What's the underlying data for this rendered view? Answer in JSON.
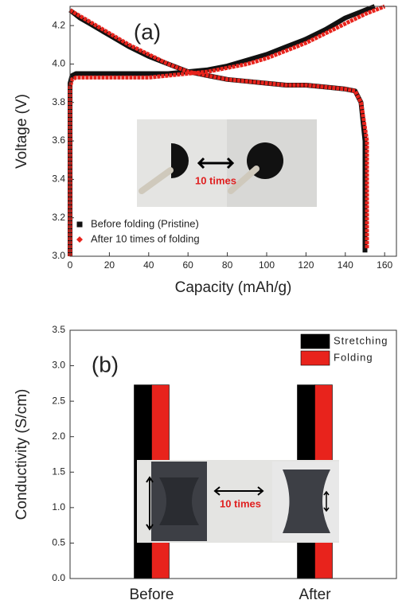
{
  "chart_data": [
    {
      "type": "line",
      "panel_label": "(a)",
      "x_label": "Capacity (mAh/g)",
      "y_label": "Voltage (V)",
      "xlim": [
        0,
        166
      ],
      "xticks": [
        0,
        20,
        40,
        60,
        80,
        100,
        120,
        140,
        160
      ],
      "ylim": [
        3.0,
        4.3
      ],
      "yticks": [
        {
          "value": 3.0,
          "label": "3.0"
        },
        3.2,
        3.4,
        3.6,
        3.8,
        {
          "value": 4.0,
          "label": "4.0"
        },
        4.2
      ],
      "legend": "lower left",
      "annotation": "10 times",
      "series": [
        {
          "name": "Before folding (Pristine)",
          "color": "#111111",
          "marker": "square",
          "x": [
            0,
            0,
            0,
            0,
            1,
            3,
            10,
            20,
            30,
            40,
            50,
            60,
            70,
            80,
            90,
            100,
            110,
            120,
            130,
            140,
            150,
            155,
            null,
            0,
            5,
            10,
            20,
            30,
            40,
            50,
            60,
            70,
            80,
            90,
            100,
            110,
            120,
            130,
            140,
            145,
            148,
            150,
            150,
            150,
            150
          ],
          "values": [
            3.0,
            3.3,
            3.7,
            3.9,
            3.94,
            3.95,
            3.95,
            3.95,
            3.95,
            3.95,
            3.95,
            3.96,
            3.97,
            3.99,
            4.02,
            4.05,
            4.09,
            4.13,
            4.18,
            4.24,
            4.28,
            4.3,
            null,
            4.28,
            4.24,
            4.21,
            4.15,
            4.09,
            4.04,
            4.0,
            3.96,
            3.94,
            3.92,
            3.91,
            3.9,
            3.89,
            3.89,
            3.88,
            3.87,
            3.86,
            3.8,
            3.6,
            3.4,
            3.2,
            3.02
          ]
        },
        {
          "name": "After 10 times of folding",
          "color": "#e8231c",
          "marker": "diamond",
          "x": [
            0,
            0,
            0,
            0,
            1,
            3,
            10,
            20,
            30,
            40,
            50,
            60,
            70,
            80,
            90,
            100,
            110,
            120,
            130,
            140,
            150,
            160,
            null,
            0,
            5,
            10,
            20,
            30,
            40,
            50,
            60,
            70,
            80,
            90,
            100,
            110,
            120,
            130,
            140,
            145,
            148,
            151,
            151,
            151,
            151
          ],
          "values": [
            3.0,
            3.3,
            3.7,
            3.88,
            3.92,
            3.93,
            3.93,
            3.93,
            3.93,
            3.93,
            3.94,
            3.95,
            3.96,
            3.98,
            4.0,
            4.03,
            4.07,
            4.11,
            4.16,
            4.21,
            4.26,
            4.3,
            null,
            4.28,
            4.25,
            4.22,
            4.16,
            4.1,
            4.05,
            4.0,
            3.96,
            3.94,
            3.92,
            3.91,
            3.9,
            3.89,
            3.89,
            3.88,
            3.87,
            3.86,
            3.8,
            3.6,
            3.4,
            3.2,
            3.04
          ]
        }
      ]
    },
    {
      "type": "bar",
      "panel_label": "(b)",
      "y_label": "Conductivity (S/cm)",
      "categories": [
        "Before",
        "After"
      ],
      "ylim": [
        0,
        3.5
      ],
      "yticks": [
        {
          "value": 0,
          "label": "0.0"
        },
        0.5,
        {
          "value": 1,
          "label": "1.0"
        },
        1.5,
        {
          "value": 2,
          "label": "2.0"
        },
        2.5,
        {
          "value": 3,
          "label": "3.0"
        },
        3.5
      ],
      "legend": "upper right",
      "annotation": "10 times",
      "series": [
        {
          "name": "Stretching",
          "color": "#000000",
          "values": [
            2.73,
            2.73
          ]
        },
        {
          "name": "Folding",
          "color": "#e8231c",
          "values": [
            2.73,
            2.73
          ]
        }
      ]
    }
  ]
}
